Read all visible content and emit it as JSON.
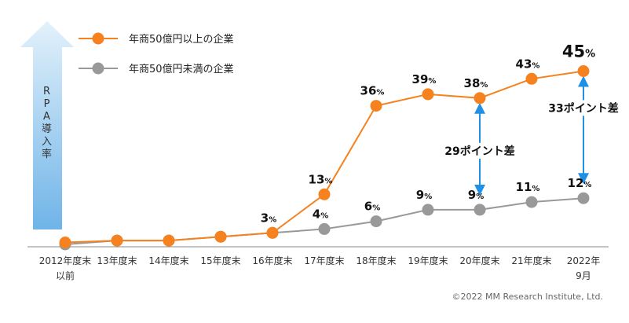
{
  "chart_data": {
    "type": "line",
    "categories": [
      [
        "2012年度末",
        "以前"
      ],
      [
        "13年度末"
      ],
      [
        "14年度末"
      ],
      [
        "15年度末"
      ],
      [
        "16年度末"
      ],
      [
        "17年度末"
      ],
      [
        "18年度末"
      ],
      [
        "19年度末"
      ],
      [
        "20年度末"
      ],
      [
        "21年度末"
      ],
      [
        "2022年",
        "9月"
      ]
    ],
    "ylabel": "RPA導入率",
    "unit": "%",
    "ylim": [
      0,
      50
    ],
    "grid": false,
    "legend_position": "top-left",
    "series": [
      {
        "name": "年商50億円以上の企業",
        "color": "#F5821F",
        "values": [
          0.5,
          1,
          1,
          2,
          3,
          13,
          36,
          39,
          38,
          43,
          45
        ],
        "labels": [
          null,
          null,
          null,
          null,
          null,
          "13",
          "36",
          "39",
          "38",
          "43",
          "45"
        ]
      },
      {
        "name": "年商50億円未満の企業",
        "color": "#999999",
        "values": [
          0,
          1,
          1,
          2,
          3,
          4,
          6,
          9,
          9,
          11,
          12
        ],
        "labels": [
          null,
          null,
          null,
          null,
          "3",
          "4",
          "6",
          "9",
          "9",
          "11",
          "12"
        ]
      }
    ],
    "annotations": [
      {
        "text": "29ポイント差",
        "index": 8
      },
      {
        "text": "33ポイント差",
        "index": 10
      }
    ],
    "label_suffix": "%",
    "copyright": "©2022 MM Research Institute, Ltd.",
    "colors": {
      "arrow_fill": "#BFE0F7",
      "gap_arrow": "#1E90E6",
      "axis": "#888888"
    }
  }
}
